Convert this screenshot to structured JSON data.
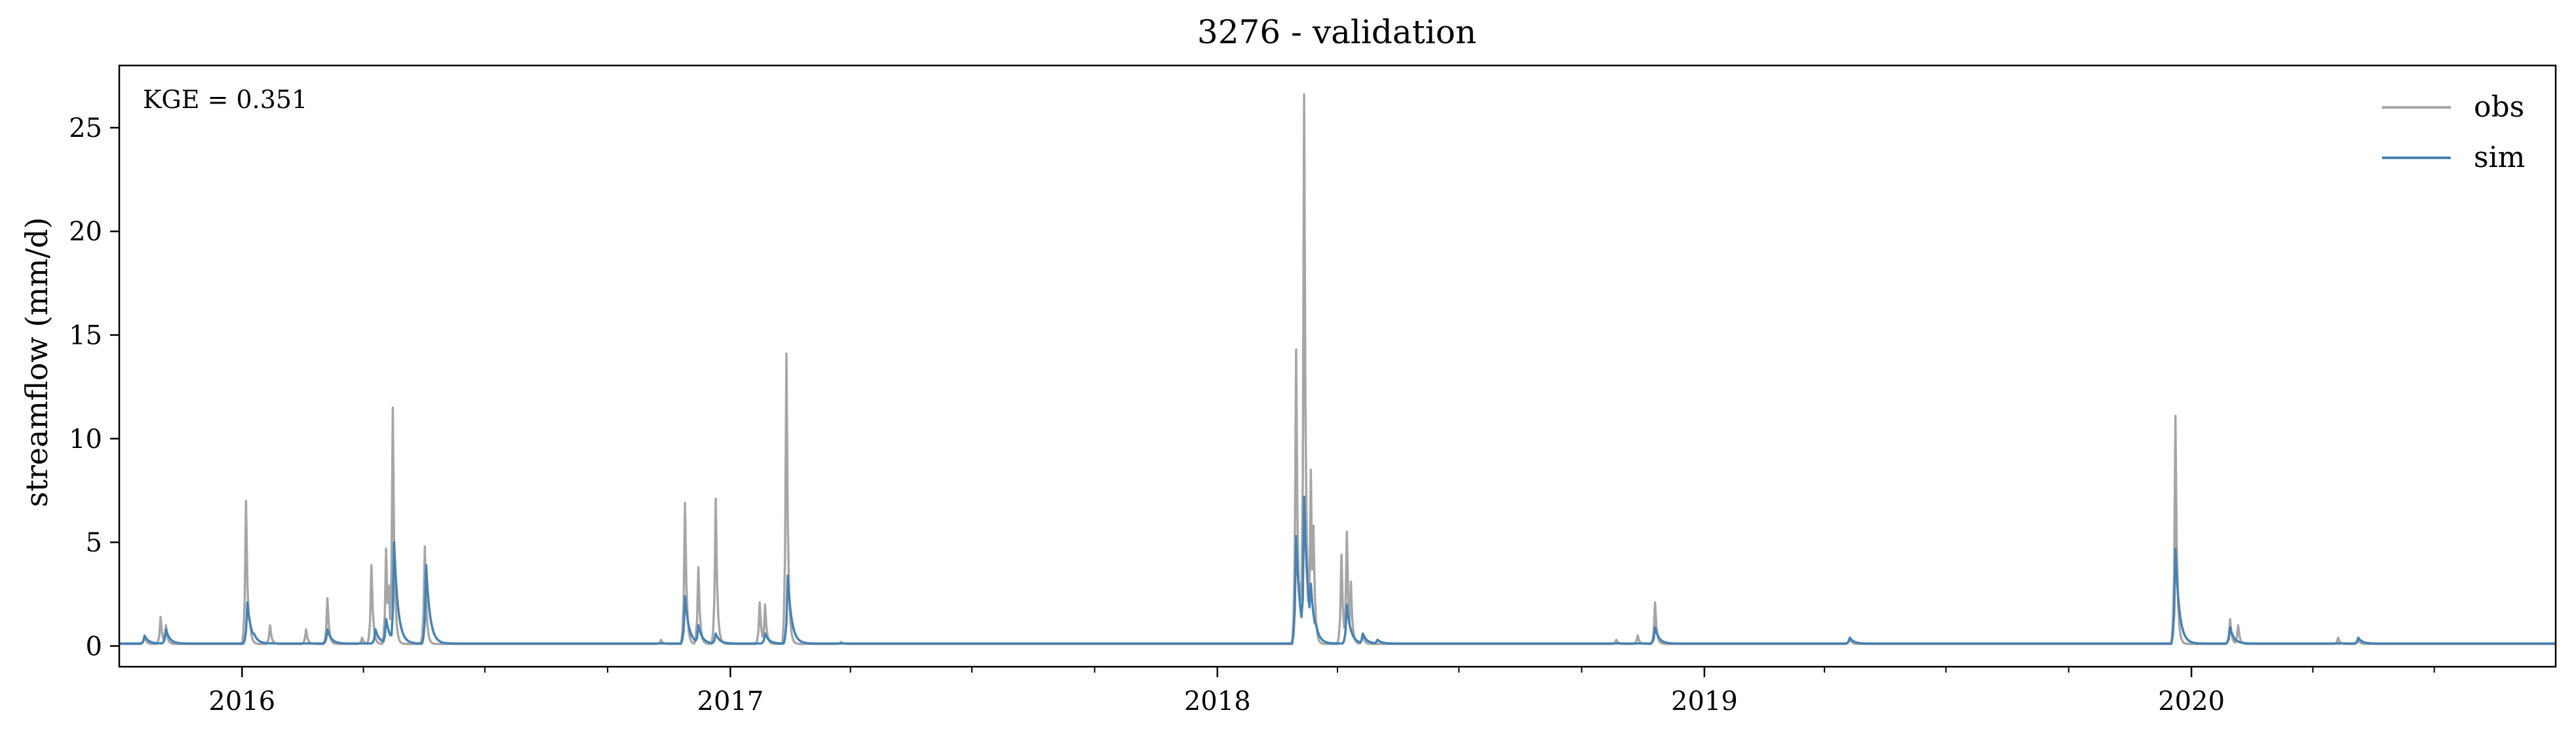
{
  "chart_data": {
    "type": "line",
    "title": "3276 - validation",
    "xlabel": "",
    "ylabel": "streamflow (mm/d)",
    "annotation": "KGE = 0.351",
    "x_axis": {
      "type": "date",
      "range": [
        "2015-10-01",
        "2020-09-30"
      ],
      "major_ticks": [
        "2016-01-01",
        "2017-01-01",
        "2018-01-01",
        "2019-01-01",
        "2020-01-01"
      ],
      "major_tick_labels": [
        "2016",
        "2017",
        "2018",
        "2019",
        "2020"
      ],
      "minor_ticks": "quarterly"
    },
    "y_axis": {
      "range": [
        -1,
        28
      ],
      "ticks": [
        0,
        5,
        10,
        15,
        20,
        25
      ],
      "tick_labels": [
        "0",
        "5",
        "10",
        "15",
        "20",
        "25"
      ]
    },
    "grid": false,
    "legend": {
      "placement": "top-right",
      "frame": false
    },
    "baseline": {
      "obs": 0.1,
      "sim": 0.12
    },
    "series": [
      {
        "name": "obs",
        "color": "#a6a6a6",
        "peaks": [
          [
            "2015-10-20",
            0.5
          ],
          [
            "2015-11-01",
            1.4
          ],
          [
            "2015-11-05",
            1.0
          ],
          [
            "2016-01-04",
            7.0
          ],
          [
            "2016-01-07",
            1.2
          ],
          [
            "2016-01-22",
            1.0
          ],
          [
            "2016-02-18",
            0.8
          ],
          [
            "2016-03-05",
            2.3
          ],
          [
            "2016-03-31",
            0.4
          ],
          [
            "2016-04-07",
            3.9
          ],
          [
            "2016-04-18",
            4.7
          ],
          [
            "2016-04-20",
            2.9
          ],
          [
            "2016-04-23",
            11.5
          ],
          [
            "2016-05-17",
            4.8
          ],
          [
            "2016-11-10",
            0.3
          ],
          [
            "2016-11-28",
            6.9
          ],
          [
            "2016-12-08",
            3.8
          ],
          [
            "2016-12-21",
            7.1
          ],
          [
            "2017-01-23",
            2.1
          ],
          [
            "2017-01-27",
            2.0
          ],
          [
            "2017-02-12",
            14.1
          ],
          [
            "2017-03-25",
            0.2
          ],
          [
            "2018-03-01",
            14.3
          ],
          [
            "2018-03-04",
            3.0
          ],
          [
            "2018-03-07",
            26.6
          ],
          [
            "2018-03-09",
            2.2
          ],
          [
            "2018-03-12",
            8.5
          ],
          [
            "2018-03-14",
            5.8
          ],
          [
            "2018-04-04",
            4.4
          ],
          [
            "2018-04-08",
            5.5
          ],
          [
            "2018-04-11",
            3.1
          ],
          [
            "2018-04-20",
            0.6
          ],
          [
            "2018-10-27",
            0.3
          ],
          [
            "2018-11-12",
            0.5
          ],
          [
            "2018-11-25",
            2.1
          ],
          [
            "2019-04-20",
            0.4
          ],
          [
            "2019-12-20",
            11.1
          ],
          [
            "2020-01-30",
            1.3
          ],
          [
            "2020-02-05",
            1.0
          ],
          [
            "2020-04-20",
            0.4
          ],
          [
            "2020-05-05",
            0.3
          ]
        ]
      },
      {
        "name": "sim",
        "color": "#4682b4",
        "peaks": [
          [
            "2015-10-20",
            0.5
          ],
          [
            "2015-11-05",
            0.8
          ],
          [
            "2016-01-05",
            2.1
          ],
          [
            "2016-01-10",
            0.6
          ],
          [
            "2016-03-05",
            0.8
          ],
          [
            "2016-04-10",
            0.8
          ],
          [
            "2016-04-18",
            1.3
          ],
          [
            "2016-04-24",
            5.0
          ],
          [
            "2016-05-18",
            3.9
          ],
          [
            "2016-11-28",
            2.4
          ],
          [
            "2016-12-08",
            1.0
          ],
          [
            "2016-12-21",
            0.6
          ],
          [
            "2017-01-27",
            0.6
          ],
          [
            "2017-02-13",
            3.4
          ],
          [
            "2018-03-01",
            5.3
          ],
          [
            "2018-03-04",
            1.5
          ],
          [
            "2018-03-07",
            7.2
          ],
          [
            "2018-03-09",
            1.3
          ],
          [
            "2018-03-12",
            3.0
          ],
          [
            "2018-03-16",
            1.0
          ],
          [
            "2018-04-08",
            2.0
          ],
          [
            "2018-04-20",
            0.6
          ],
          [
            "2018-05-01",
            0.3
          ],
          [
            "2018-11-25",
            0.9
          ],
          [
            "2019-04-20",
            0.4
          ],
          [
            "2019-12-20",
            4.7
          ],
          [
            "2020-01-30",
            0.9
          ],
          [
            "2020-05-05",
            0.4
          ]
        ]
      }
    ]
  }
}
